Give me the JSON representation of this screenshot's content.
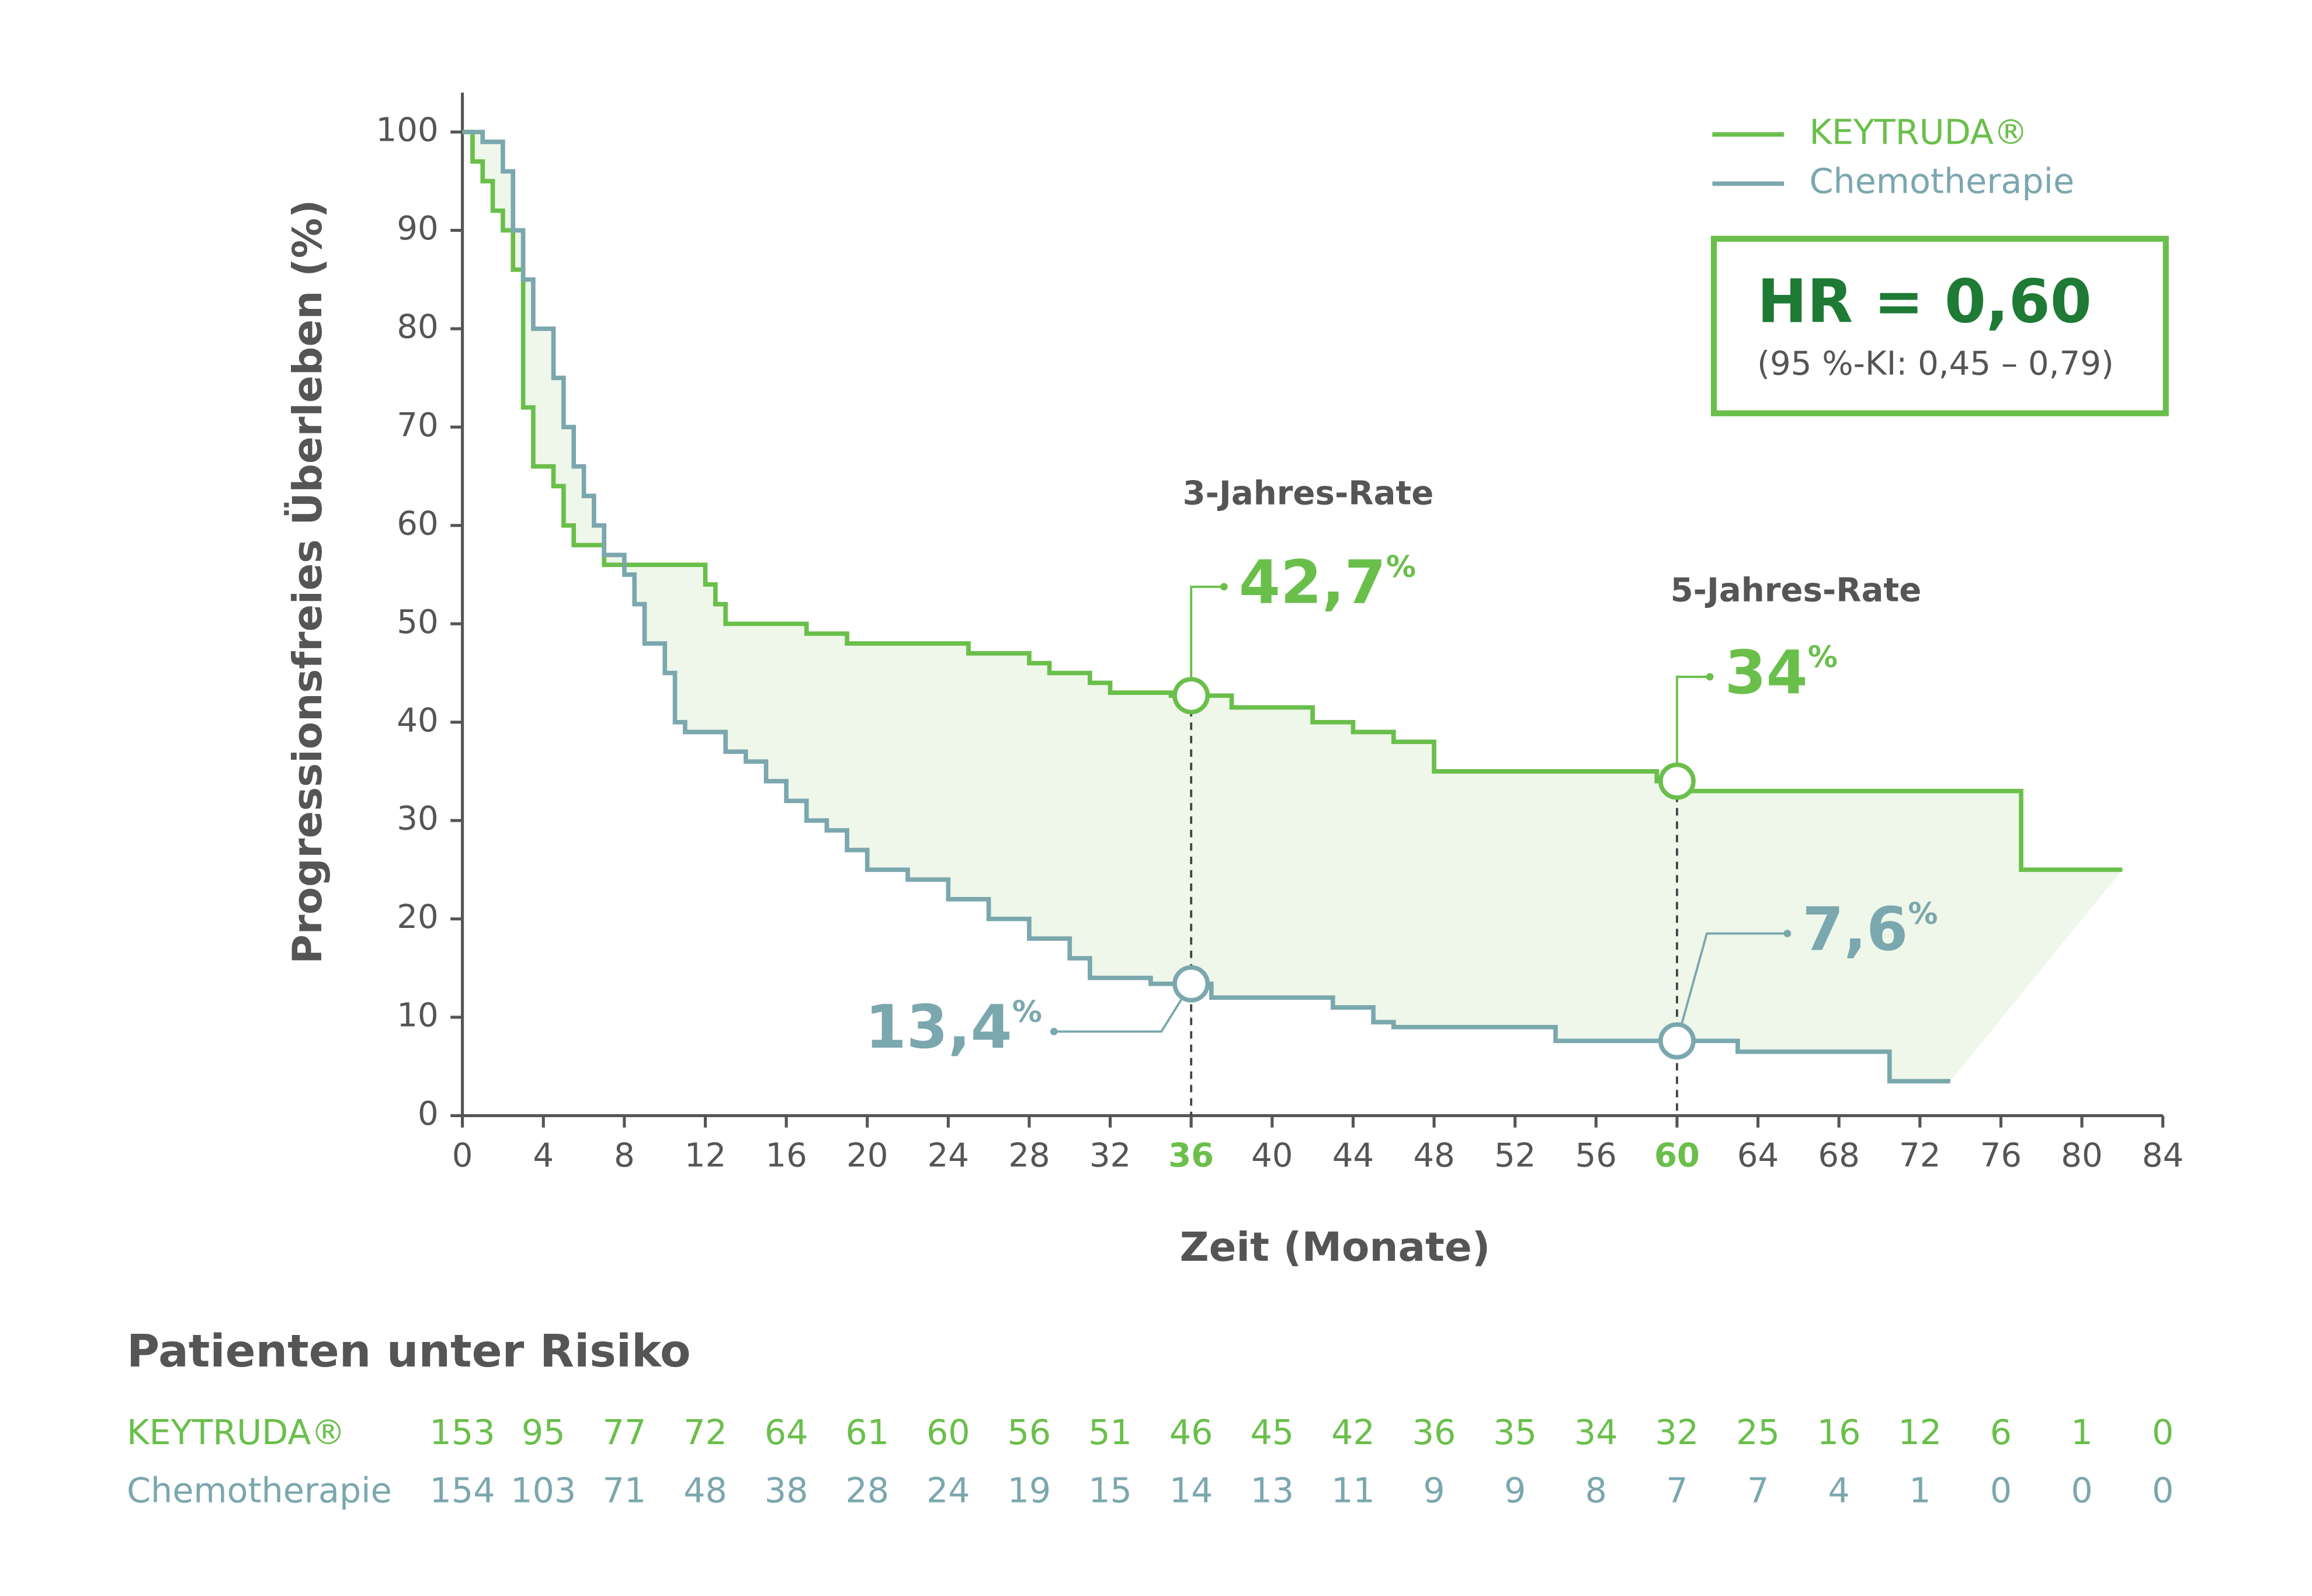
{
  "chart_data": {
    "type": "step",
    "y_label": "Progressionsfreies Überleben (%)",
    "x_label": "Zeit (Monate)",
    "xlim": [
      0,
      84
    ],
    "xticks": [
      0,
      4,
      8,
      12,
      16,
      20,
      24,
      28,
      32,
      36,
      40,
      44,
      48,
      52,
      56,
      60,
      64,
      68,
      72,
      76,
      80,
      84
    ],
    "highlight_xticks": [
      36,
      60
    ],
    "ylim": [
      0,
      104
    ],
    "yticks": [
      0,
      10,
      20,
      30,
      40,
      50,
      60,
      70,
      80,
      90,
      100
    ],
    "legend": "top-right",
    "annotations": [
      "3-Jahres-Rate",
      "5-Jahres-Rate"
    ],
    "hr_box": {
      "title": "HR = 0,60",
      "subtitle": "(95 %-KI: 0,45 – 0,79)"
    },
    "series": [
      {
        "name": "KEYTRUDA®",
        "color": "#6abf4b",
        "x": [
          0,
          0.5,
          1,
          1.5,
          2,
          2.5,
          3,
          3.5,
          4.5,
          5,
          5.5,
          7,
          12,
          12.5,
          13,
          17,
          19,
          25,
          28,
          29,
          31,
          32,
          35,
          38,
          42,
          44,
          46,
          48,
          59,
          60,
          77,
          82
        ],
        "values": [
          100,
          97,
          95,
          92,
          90,
          86,
          72,
          66,
          64,
          60,
          58,
          56,
          54,
          52,
          50,
          49,
          48,
          47,
          46,
          45,
          44,
          43,
          42.7,
          41.5,
          40,
          39,
          38,
          35,
          34,
          33,
          25,
          25
        ],
        "markers": [
          {
            "x": 36,
            "y": 42.7,
            "label": "42,7",
            "suffix": "%"
          },
          {
            "x": 60,
            "y": 34,
            "label": "34",
            "suffix": "%"
          }
        ]
      },
      {
        "name": "Chemotherapie",
        "color": "#7ba7ae",
        "x": [
          0,
          1,
          2,
          2.5,
          3,
          3.5,
          4.5,
          5,
          5.5,
          6,
          6.5,
          7,
          8,
          8.5,
          9,
          10,
          10.5,
          11,
          13,
          14,
          15,
          16,
          17,
          18,
          19,
          20,
          22,
          24,
          26,
          28,
          30,
          31,
          34,
          37,
          43,
          45,
          46,
          54,
          63,
          70.5,
          73.5
        ],
        "values": [
          100,
          99,
          96,
          90,
          85,
          80,
          75,
          70,
          66,
          63,
          60,
          57,
          55,
          52,
          48,
          45,
          40,
          39,
          37,
          36,
          34,
          32,
          30,
          29,
          27,
          25,
          24,
          22,
          20,
          18,
          16,
          14,
          13.4,
          12,
          11,
          9.5,
          9,
          7.6,
          6.5,
          3.5,
          3.5
        ],
        "markers": [
          {
            "x": 36,
            "y": 13.4,
            "label": "13,4",
            "suffix": "%"
          },
          {
            "x": 60,
            "y": 7.6,
            "label": "7,6",
            "suffix": "%"
          }
        ]
      }
    ],
    "risk_table": {
      "title": "Patienten unter Risiko",
      "rows": [
        {
          "name": "KEYTRUDA®",
          "values": [
            153,
            95,
            77,
            72,
            64,
            61,
            60,
            56,
            51,
            46,
            45,
            42,
            36,
            35,
            34,
            32,
            25,
            16,
            12,
            6,
            1,
            0
          ]
        },
        {
          "name": "Chemotherapie",
          "values": [
            154,
            103,
            71,
            48,
            38,
            28,
            24,
            19,
            15,
            14,
            13,
            11,
            9,
            9,
            8,
            7,
            7,
            4,
            1,
            0,
            0,
            0
          ]
        }
      ]
    }
  }
}
